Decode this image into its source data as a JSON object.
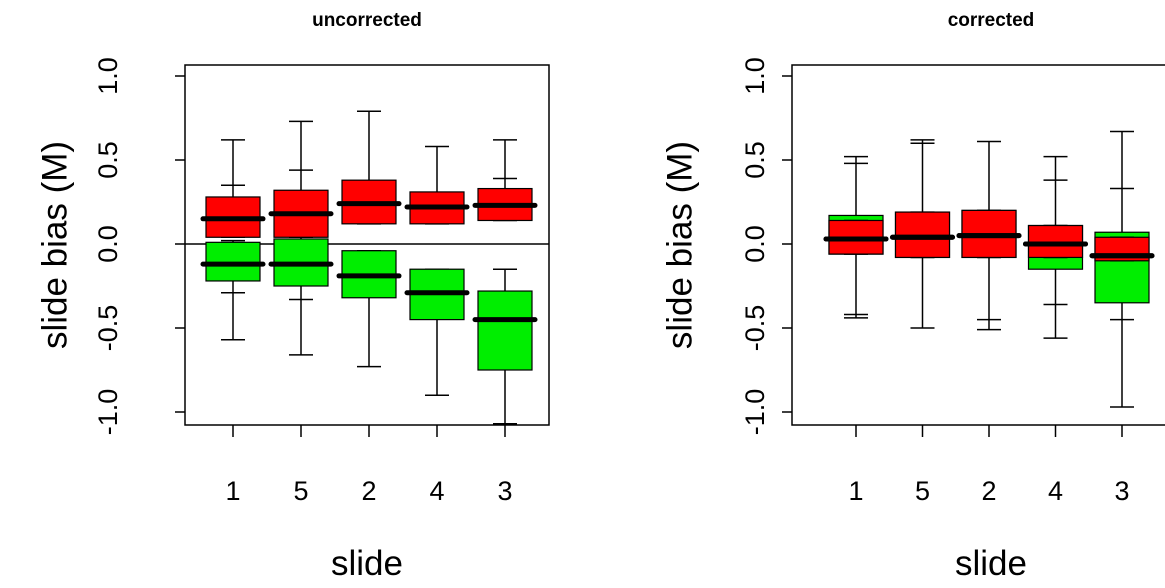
{
  "chart_data": [
    {
      "type": "box",
      "title": "uncorrected",
      "xlabel": "slide",
      "ylabel": "slide bias (M)",
      "categories": [
        "1",
        "5",
        "2",
        "4",
        "3"
      ],
      "ylim": [
        -1.07,
        1.0
      ],
      "yticks": [
        "-1.0",
        "-0.5",
        "0.0",
        "0.5",
        "1.0"
      ],
      "reference_line_y": 0,
      "series": [
        {
          "color": "#00ee00",
          "boxes": [
            {
              "whisker_low": -0.57,
              "q1": -0.22,
              "median": -0.12,
              "q3": 0.01,
              "whisker_high": 0.02,
              "outlier_caps": [
                -0.29
              ]
            },
            {
              "whisker_low": -0.66,
              "q1": -0.25,
              "median": -0.12,
              "q3": 0.03,
              "whisker_high": 0.04,
              "outlier_caps": [
                -0.33
              ]
            },
            {
              "whisker_low": -0.73,
              "q1": -0.32,
              "median": -0.19,
              "q3": -0.04,
              "whisker_high": -0.04,
              "outlier_caps": [
                -0.28
              ]
            },
            {
              "whisker_low": -0.9,
              "q1": -0.45,
              "median": -0.29,
              "q3": -0.15,
              "whisker_high": -0.15,
              "outlier_caps": []
            },
            {
              "whisker_low": -1.07,
              "q1": -0.75,
              "median": -0.45,
              "q3": -0.28,
              "whisker_high": -0.15,
              "outlier_caps": []
            }
          ]
        },
        {
          "color": "#ff0000",
          "boxes": [
            {
              "whisker_low": 0.04,
              "q1": 0.04,
              "median": 0.15,
              "q3": 0.28,
              "whisker_high": 0.62,
              "outlier_caps": [
                0.35
              ]
            },
            {
              "whisker_low": 0.04,
              "q1": 0.04,
              "median": 0.18,
              "q3": 0.32,
              "whisker_high": 0.73,
              "outlier_caps": [
                0.44
              ]
            },
            {
              "whisker_low": 0.12,
              "q1": 0.12,
              "median": 0.24,
              "q3": 0.38,
              "whisker_high": 0.79,
              "outlier_caps": []
            },
            {
              "whisker_low": 0.12,
              "q1": 0.12,
              "median": 0.22,
              "q3": 0.31,
              "whisker_high": 0.58,
              "outlier_caps": []
            },
            {
              "whisker_low": 0.14,
              "q1": 0.14,
              "median": 0.23,
              "q3": 0.33,
              "whisker_high": 0.62,
              "outlier_caps": [
                0.39
              ]
            }
          ]
        }
      ]
    },
    {
      "type": "box",
      "title": "corrected",
      "xlabel": "slide",
      "ylabel": "slide bias (M)",
      "categories": [
        "1",
        "5",
        "2",
        "4",
        "3"
      ],
      "ylim": [
        -1.07,
        1.0
      ],
      "yticks": [
        "-1.0",
        "-0.5",
        "0.0",
        "0.5",
        "1.0"
      ],
      "series": [
        {
          "color": "#00ee00",
          "boxes": [
            {
              "whisker_low": -0.44,
              "q1": -0.06,
              "median": 0.03,
              "q3": 0.17,
              "whisker_high": 0.52,
              "outlier_caps": [
                -0.42,
                0.48
              ]
            },
            {
              "whisker_low": -0.5,
              "q1": -0.08,
              "median": 0.04,
              "q3": 0.19,
              "whisker_high": 0.62,
              "outlier_caps": [
                0.6
              ]
            },
            {
              "whisker_low": -0.51,
              "q1": -0.08,
              "median": 0.05,
              "q3": 0.2,
              "whisker_high": 0.61,
              "outlier_caps": [
                -0.45
              ]
            },
            {
              "whisker_low": -0.56,
              "q1": -0.15,
              "median": 0.0,
              "q3": 0.11,
              "whisker_high": 0.52,
              "outlier_caps": [
                -0.36,
                0.38
              ]
            },
            {
              "whisker_low": -0.97,
              "q1": -0.35,
              "median": -0.07,
              "q3": 0.07,
              "whisker_high": 0.67,
              "outlier_caps": [
                -0.45,
                0.33
              ]
            }
          ]
        },
        {
          "color": "#ff0000",
          "boxes": [
            {
              "whisker_low": -0.06,
              "q1": -0.06,
              "median": 0.03,
              "q3": 0.14,
              "whisker_high": 0.14,
              "outlier_caps": []
            },
            {
              "whisker_low": -0.08,
              "q1": -0.08,
              "median": 0.04,
              "q3": 0.19,
              "whisker_high": 0.19,
              "outlier_caps": []
            },
            {
              "whisker_low": -0.08,
              "q1": -0.08,
              "median": 0.05,
              "q3": 0.2,
              "whisker_high": 0.2,
              "outlier_caps": []
            },
            {
              "whisker_low": -0.08,
              "q1": -0.08,
              "median": 0.0,
              "q3": 0.11,
              "whisker_high": 0.11,
              "outlier_caps": []
            },
            {
              "whisker_low": -0.1,
              "q1": -0.1,
              "median": -0.07,
              "q3": 0.04,
              "whisker_high": 0.04,
              "outlier_caps": []
            }
          ]
        }
      ]
    }
  ]
}
